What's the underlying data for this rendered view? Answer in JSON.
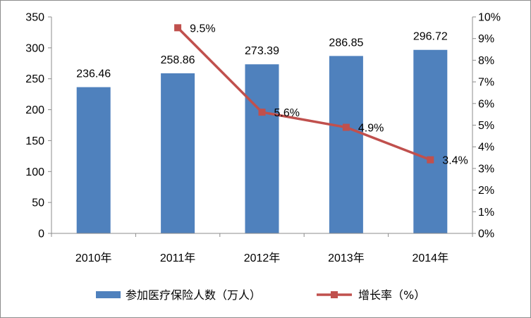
{
  "chart_data": {
    "type": "bar",
    "categories": [
      "2010年",
      "2011年",
      "2012年",
      "2013年",
      "2014年"
    ],
    "series": [
      {
        "name": "参加医疗保险人数（万人）",
        "type": "bar",
        "axis": "left",
        "values": [
          236.46,
          258.86,
          273.39,
          286.85,
          296.72
        ],
        "labels": [
          "236.46",
          "258.86",
          "273.39",
          "286.85",
          "296.72"
        ],
        "color": "#4f81bd"
      },
      {
        "name": "增长率（%）",
        "type": "line",
        "axis": "right",
        "values": [
          null,
          9.5,
          5.6,
          4.9,
          3.4
        ],
        "labels": [
          "",
          "9.5%",
          "5.6%",
          "4.9%",
          "3.4%"
        ],
        "color": "#c0504d"
      }
    ],
    "y_left": {
      "ylim": [
        0,
        350
      ],
      "ticks": [
        0,
        50,
        100,
        150,
        200,
        250,
        300,
        350
      ],
      "tick_labels": [
        "0",
        "50",
        "100",
        "150",
        "200",
        "250",
        "300",
        "350"
      ]
    },
    "y_right": {
      "ylim": [
        0,
        10
      ],
      "ticks": [
        0,
        1,
        2,
        3,
        4,
        5,
        6,
        7,
        8,
        9,
        10
      ],
      "tick_labels": [
        "0%",
        "1%",
        "2%",
        "3%",
        "4%",
        "5%",
        "6%",
        "7%",
        "8%",
        "9%",
        "10%"
      ]
    },
    "grid": false,
    "legend_position": "bottom"
  }
}
